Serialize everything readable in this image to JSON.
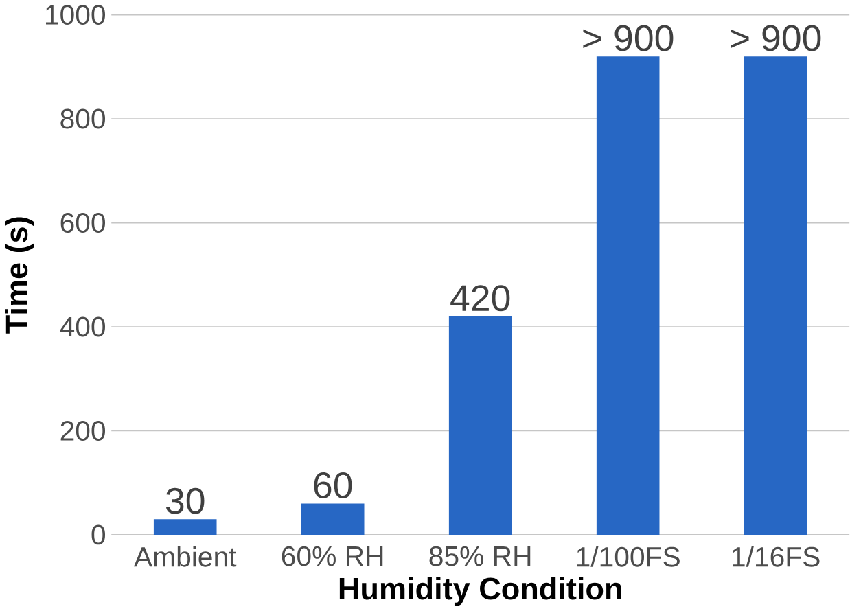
{
  "chart_data": {
    "type": "bar",
    "xlabel": "Humidity Condition",
    "ylabel": "Time (s)",
    "categories": [
      "Ambient",
      "60% RH",
      "85% RH",
      "1/100FS",
      "1/16FS"
    ],
    "values": [
      30,
      60,
      420,
      920,
      920
    ],
    "value_labels": [
      "30",
      "60",
      "420",
      "> 900",
      "> 900"
    ],
    "color": "#2767c4",
    "ylim": [
      0,
      1000
    ],
    "yticks": [
      0,
      200,
      400,
      600,
      800,
      1000
    ],
    "grid": "y"
  }
}
